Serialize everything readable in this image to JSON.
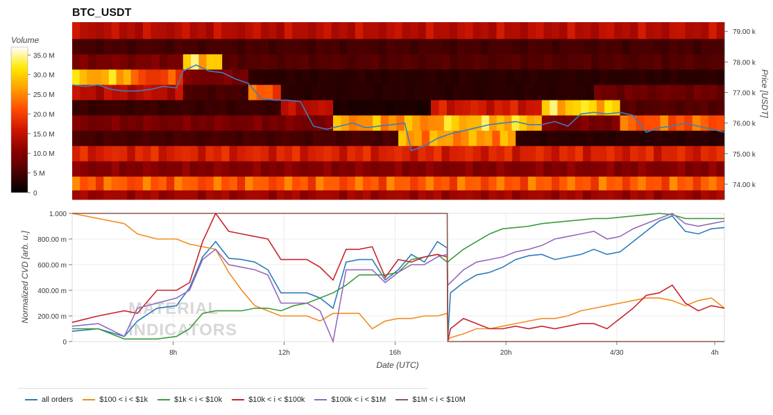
{
  "chart_data": [
    {
      "type": "heatmap",
      "title": "BTC_USDT",
      "ylabel": "Price [USDT]",
      "ylim": [
        73500,
        79300
      ],
      "yticks": [
        {
          "value": 74000,
          "label": "74.00 k"
        },
        {
          "value": 75000,
          "label": "75.00 k"
        },
        {
          "value": 76000,
          "label": "76.00 k"
        },
        {
          "value": 77000,
          "label": "77.00 k"
        },
        {
          "value": 78000,
          "label": "78.00 k"
        },
        {
          "value": 79000,
          "label": "79.00 k"
        }
      ],
      "colorbar": {
        "label": "Volume",
        "ticks": [
          "0",
          "5 M",
          "10.0 M",
          "15.0 M",
          "20.0 M",
          "25.0 M",
          "30.0 M",
          "35.0 M"
        ],
        "range": [
          0,
          37000000
        ],
        "colors": [
          "#000000",
          "#4a0000",
          "#8b0000",
          "#cc1500",
          "#ff4a00",
          "#ff9f00",
          "#ffe800",
          "#ffffff"
        ]
      },
      "price_bands": [
        {
          "price": 79000,
          "segments": [
            {
              "x0": 0,
              "x1": 100,
              "volume": 14000000
            }
          ]
        },
        {
          "price": 78500,
          "segments": [
            {
              "x0": 0,
              "x1": 100,
              "volume": 5000000
            }
          ]
        },
        {
          "price": 78000,
          "segments": [
            {
              "x0": 0,
              "x1": 17,
              "volume": 9000000
            },
            {
              "x0": 17,
              "x1": 23,
              "volume": 30000000
            },
            {
              "x0": 23,
              "x1": 100,
              "volume": 6000000
            }
          ]
        },
        {
          "price": 77500,
          "segments": [
            {
              "x0": 0,
              "x1": 9,
              "volume": 28000000
            },
            {
              "x0": 9,
              "x1": 17,
              "volume": 20000000
            },
            {
              "x0": 17,
              "x1": 27,
              "volume": 9000000
            },
            {
              "x0": 27,
              "x1": 100,
              "volume": 3000000
            }
          ]
        },
        {
          "price": 77000,
          "segments": [
            {
              "x0": 0,
              "x1": 17,
              "volume": 14000000
            },
            {
              "x0": 17,
              "x1": 27,
              "volume": 5000000
            },
            {
              "x0": 27,
              "x1": 32,
              "volume": 22000000
            },
            {
              "x0": 32,
              "x1": 80,
              "volume": 3000000
            },
            {
              "x0": 80,
              "x1": 100,
              "volume": 8000000
            }
          ]
        },
        {
          "price": 76500,
          "segments": [
            {
              "x0": 0,
              "x1": 32,
              "volume": 4000000
            },
            {
              "x0": 32,
              "x1": 40,
              "volume": 14000000
            },
            {
              "x0": 40,
              "x1": 55,
              "volume": 2000000
            },
            {
              "x0": 55,
              "x1": 72,
              "volume": 16000000
            },
            {
              "x0": 72,
              "x1": 84,
              "volume": 30000000
            },
            {
              "x0": 84,
              "x1": 100,
              "volume": 6000000
            }
          ]
        },
        {
          "price": 76000,
          "segments": [
            {
              "x0": 0,
              "x1": 40,
              "volume": 9000000
            },
            {
              "x0": 40,
              "x1": 57,
              "volume": 26000000
            },
            {
              "x0": 57,
              "x1": 72,
              "volume": 29000000
            },
            {
              "x0": 72,
              "x1": 84,
              "volume": 9000000
            },
            {
              "x0": 84,
              "x1": 100,
              "volume": 22000000
            }
          ]
        },
        {
          "price": 75500,
          "segments": [
            {
              "x0": 0,
              "x1": 50,
              "volume": 5000000
            },
            {
              "x0": 50,
              "x1": 68,
              "volume": 26000000
            },
            {
              "x0": 68,
              "x1": 100,
              "volume": 3000000
            }
          ]
        },
        {
          "price": 75000,
          "segments": [
            {
              "x0": 0,
              "x1": 100,
              "volume": 17000000
            }
          ]
        },
        {
          "price": 74500,
          "segments": [
            {
              "x0": 0,
              "x1": 100,
              "volume": 10000000
            }
          ]
        },
        {
          "price": 74000,
          "segments": [
            {
              "x0": 0,
              "x1": 100,
              "volume": 22000000
            }
          ]
        },
        {
          "price": 73600,
          "segments": [
            {
              "x0": 0,
              "x1": 100,
              "volume": 12000000
            }
          ]
        }
      ],
      "price_line": {
        "color": "#3b7ec2",
        "x": [
          0,
          2,
          4,
          6,
          8,
          10,
          12,
          14,
          16,
          17,
          19,
          21,
          23,
          25,
          27,
          29,
          31,
          33,
          35,
          37,
          39,
          41,
          43,
          45,
          47,
          49,
          51,
          52,
          54,
          56,
          58,
          60,
          62,
          64,
          66,
          68,
          70,
          72,
          74,
          76,
          78,
          80,
          82,
          84,
          86,
          88,
          90,
          92,
          94,
          96,
          98,
          100
        ],
        "y": [
          77250,
          77200,
          77250,
          77100,
          77050,
          77050,
          77100,
          77200,
          77150,
          77700,
          77900,
          77700,
          77650,
          77450,
          77300,
          76800,
          76750,
          76750,
          76700,
          75900,
          75800,
          75900,
          76000,
          75850,
          75900,
          75950,
          76000,
          75100,
          75250,
          75500,
          75650,
          75750,
          75850,
          75950,
          76000,
          76050,
          75950,
          75950,
          76050,
          75900,
          76300,
          76350,
          76300,
          76350,
          76250,
          75700,
          75850,
          75900,
          76000,
          75900,
          75800,
          75700
        ]
      }
    },
    {
      "type": "line",
      "xlabel": "Date (UTC)",
      "ylabel": "Normalized CVD [arb. u.]",
      "ylim": [
        0,
        1
      ],
      "yticks": [
        {
          "value": 0,
          "label": "0"
        },
        {
          "value": 0.2,
          "label": "200.00 m"
        },
        {
          "value": 0.4,
          "label": "400.00 m"
        },
        {
          "value": 0.6,
          "label": "600.00 m"
        },
        {
          "value": 0.8,
          "label": "800.00 m"
        },
        {
          "value": 1.0,
          "label": "1.000"
        }
      ],
      "xticks": [
        {
          "value": 15.5,
          "label": "8h"
        },
        {
          "value": 32.5,
          "label": "12h"
        },
        {
          "value": 49.5,
          "label": "16h"
        },
        {
          "value": 66.5,
          "label": "20h"
        },
        {
          "value": 83.5,
          "label": "4/30"
        },
        {
          "value": 100.5,
          "label": "4h"
        }
      ],
      "x": [
        0,
        4,
        8,
        10,
        13,
        16,
        18,
        20,
        22,
        24,
        26,
        28,
        30,
        32,
        34,
        36,
        38,
        40,
        42,
        44,
        46,
        48,
        50,
        52,
        54,
        56,
        57.5,
        57.6,
        58,
        60,
        62,
        64,
        66,
        68,
        70,
        72,
        74,
        76,
        78,
        80,
        82,
        84,
        86,
        88,
        90,
        92,
        94,
        96,
        98,
        100
      ],
      "series": [
        {
          "name": "all orders",
          "color": "#2b7bb9",
          "values": [
            0.08,
            0.1,
            0.04,
            0.16,
            0.26,
            0.28,
            0.42,
            0.66,
            0.78,
            0.65,
            0.64,
            0.62,
            0.56,
            0.38,
            0.38,
            0.38,
            0.34,
            0.26,
            0.62,
            0.64,
            0.64,
            0.48,
            0.56,
            0.68,
            0.62,
            0.78,
            0.73,
            0.03,
            0.38,
            0.46,
            0.52,
            0.54,
            0.58,
            0.64,
            0.67,
            0.68,
            0.64,
            0.66,
            0.68,
            0.72,
            0.68,
            0.7,
            0.78,
            0.86,
            0.94,
            0.98,
            0.86,
            0.84,
            0.88,
            0.89
          ]
        },
        {
          "name": "$100 < i < $1k",
          "color": "#f28b1d",
          "values": [
            1.0,
            0.96,
            0.92,
            0.84,
            0.8,
            0.8,
            0.76,
            0.74,
            0.72,
            0.54,
            0.4,
            0.28,
            0.24,
            0.2,
            0.2,
            0.2,
            0.16,
            0.22,
            0.22,
            0.22,
            0.1,
            0.16,
            0.18,
            0.18,
            0.2,
            0.2,
            0.22,
            0.01,
            0.03,
            0.06,
            0.1,
            0.1,
            0.12,
            0.14,
            0.16,
            0.18,
            0.18,
            0.2,
            0.24,
            0.26,
            0.28,
            0.3,
            0.32,
            0.34,
            0.34,
            0.32,
            0.28,
            0.32,
            0.34,
            0.26
          ]
        },
        {
          "name": "$1k < i < $10k",
          "color": "#3a9a3a",
          "values": [
            0.1,
            0.1,
            0.02,
            0.02,
            0.02,
            0.04,
            0.1,
            0.22,
            0.24,
            0.24,
            0.24,
            0.26,
            0.26,
            0.24,
            0.28,
            0.3,
            0.34,
            0.38,
            0.44,
            0.52,
            0.52,
            0.52,
            0.54,
            0.64,
            0.66,
            0.68,
            0.62,
            0.62,
            0.64,
            0.72,
            0.78,
            0.84,
            0.88,
            0.89,
            0.9,
            0.92,
            0.93,
            0.94,
            0.95,
            0.96,
            0.96,
            0.97,
            0.98,
            0.99,
            1.0,
            0.99,
            0.96,
            0.96,
            0.96,
            0.96
          ]
        },
        {
          "name": "$10k < i < $100k",
          "color": "#c8232c",
          "values": [
            0.15,
            0.2,
            0.24,
            0.22,
            0.4,
            0.4,
            0.46,
            0.78,
            1.0,
            0.86,
            0.84,
            0.82,
            0.8,
            0.64,
            0.64,
            0.64,
            0.58,
            0.48,
            0.72,
            0.72,
            0.74,
            0.5,
            0.64,
            0.62,
            0.66,
            0.68,
            0.66,
            0.0,
            0.1,
            0.18,
            0.14,
            0.1,
            0.1,
            0.12,
            0.1,
            0.12,
            0.1,
            0.12,
            0.14,
            0.14,
            0.1,
            0.18,
            0.26,
            0.36,
            0.38,
            0.44,
            0.3,
            0.24,
            0.28,
            0.26
          ]
        },
        {
          "name": "$100k < i < $1M",
          "color": "#9467bd",
          "values": [
            0.12,
            0.14,
            0.04,
            0.26,
            0.3,
            0.34,
            0.4,
            0.64,
            0.72,
            0.6,
            0.58,
            0.56,
            0.52,
            0.3,
            0.3,
            0.3,
            0.24,
            0.0,
            0.56,
            0.56,
            0.56,
            0.46,
            0.54,
            0.6,
            0.6,
            0.66,
            0.68,
            0.44,
            0.46,
            0.56,
            0.62,
            0.64,
            0.66,
            0.7,
            0.72,
            0.75,
            0.8,
            0.82,
            0.84,
            0.86,
            0.8,
            0.82,
            0.88,
            0.92,
            0.96,
            1.0,
            0.92,
            0.9,
            0.92,
            0.94
          ]
        },
        {
          "name": "$1M < i < $10M",
          "color": "#8c564b",
          "values": [
            1.0,
            1.0,
            1.0,
            1.0,
            1.0,
            1.0,
            1.0,
            1.0,
            1.0,
            1.0,
            1.0,
            1.0,
            1.0,
            1.0,
            1.0,
            1.0,
            1.0,
            1.0,
            1.0,
            1.0,
            1.0,
            1.0,
            1.0,
            1.0,
            1.0,
            1.0,
            1.0,
            0.0,
            0.0,
            0.0,
            0.0,
            0.0,
            0.0,
            0.0,
            0.0,
            0.0,
            0.0,
            0.0,
            0.0,
            0.0,
            0.0,
            0.0,
            0.0,
            0.0,
            0.0,
            0.0,
            0.0,
            0.0,
            0.0,
            0.0
          ]
        }
      ]
    }
  ],
  "watermark": {
    "line1": "MATERIAL",
    "line2": "INDICATORS"
  }
}
